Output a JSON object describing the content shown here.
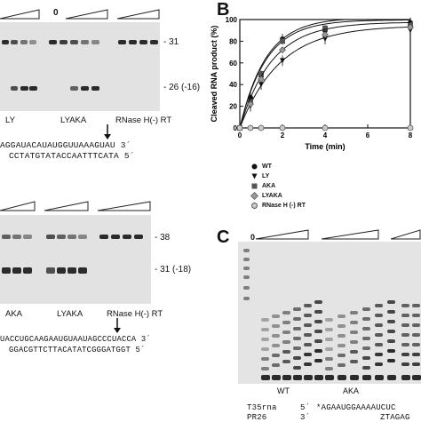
{
  "panels": {
    "b_label": "B",
    "c_label": "C"
  },
  "gel_top": {
    "zero_label": "0",
    "marker_31": "- 31",
    "marker_26": "- 26 (-16)",
    "lane_labels": [
      "LY",
      "LYAKA",
      "RNase H(-) RT"
    ],
    "seq_line1": "AGGAUACAUAUGGUUAAAGUAU 3´",
    "seq_line2": "CCTATGTATACCAATTTCATA 5´"
  },
  "gel_mid": {
    "marker_38": "- 38",
    "marker_31": "- 31 (-18)",
    "lane_labels": [
      "AKA",
      "LYAKA",
      "RNase H(-) RT"
    ],
    "seq_line1": "UACCUGCAAGAAUGUAAUAGCCCUACCA 3´",
    "seq_line2": "GGACGTTCTTACATATCGGGATGGT 5´"
  },
  "gel_c": {
    "zero_label": "0",
    "lane_labels": [
      "WT",
      "AKA"
    ],
    "seq_row1_name": "T35rna",
    "seq_row1_dir": "5´",
    "seq_row1_seq": "*AGAAUGGAAAAUCUC",
    "seq_row2_name": "PR26",
    "seq_row2_dir": "3´",
    "seq_row2_seq": "ZTAGAG"
  },
  "chart_data": {
    "type": "line",
    "title": "",
    "xlabel": "Time (min)",
    "ylabel": "Cleaved RNA product (%)",
    "xlim": [
      0,
      8
    ],
    "ylim": [
      0,
      100
    ],
    "xticks": [
      0,
      2,
      4,
      6,
      8
    ],
    "yticks": [
      0,
      20,
      40,
      60,
      80,
      100
    ],
    "x": [
      0,
      0.5,
      1,
      2,
      4,
      8
    ],
    "series": [
      {
        "name": "WT",
        "marker": "circle",
        "values": [
          0,
          28,
          48,
          82,
          90,
          97
        ]
      },
      {
        "name": "LY",
        "marker": "triangle-down",
        "values": [
          0,
          20,
          40,
          62,
          82,
          90
        ]
      },
      {
        "name": "AKA",
        "marker": "square",
        "values": [
          0,
          24,
          50,
          80,
          92,
          95
        ]
      },
      {
        "name": "LYAKA",
        "marker": "diamond",
        "values": [
          0,
          22,
          45,
          72,
          86,
          93
        ]
      },
      {
        "name": "RNase H (-) RT",
        "marker": "open-circle",
        "values": [
          0,
          0,
          0,
          0,
          0,
          0
        ]
      }
    ],
    "legend_position": "below"
  }
}
